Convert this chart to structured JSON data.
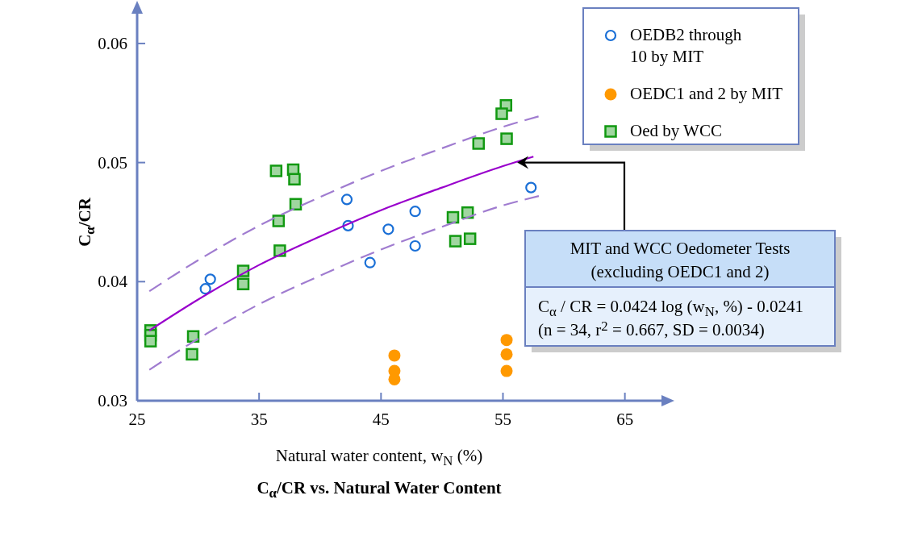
{
  "chart_data": {
    "type": "scatter",
    "title": "C$_{α}$/CR vs. Natural Water Content",
    "xlabel": "Natural water content, w$_{N}$ (%)",
    "ylabel": "C$_{α}$/CR",
    "xlim": [
      25,
      68
    ],
    "ylim": [
      0.03,
      0.0625
    ],
    "xticks": [
      25,
      35,
      45,
      55,
      65
    ],
    "yticks": [
      0.03,
      0.04,
      0.05,
      0.06
    ],
    "grid": false,
    "legend": "top right",
    "series": [
      {
        "name": "OEDB2 through 10 by MIT",
        "marker": "circle",
        "color": "#1a6fd6",
        "x": [
          30.6,
          31.0,
          42.2,
          42.3,
          44.1,
          45.6,
          47.8,
          47.8,
          57.3
        ],
        "values": [
          0.0394,
          0.0402,
          0.0469,
          0.0447,
          0.0416,
          0.0444,
          0.0459,
          0.043,
          0.0479
        ]
      },
      {
        "name": "OEDC1 and 2 by MIT",
        "marker": "circle",
        "color": "#ff9900",
        "x": [
          46.1,
          46.1,
          46.1,
          55.3,
          55.3,
          55.3
        ],
        "values": [
          0.0338,
          0.0325,
          0.0318,
          0.0351,
          0.0339,
          0.0325
        ]
      },
      {
        "name": "Oed by WCC",
        "marker": "square",
        "color": "#119911",
        "x": [
          26.1,
          26.1,
          26.1,
          29.6,
          29.5,
          33.7,
          33.7,
          36.4,
          37.8,
          37.9,
          38.0,
          36.6,
          36.7,
          55.25,
          54.9,
          53.0,
          55.3,
          50.9,
          52.1,
          51.1,
          52.3
        ],
        "values": [
          0.0359,
          0.0355,
          0.035,
          0.0354,
          0.0339,
          0.0409,
          0.0398,
          0.0493,
          0.0494,
          0.0486,
          0.0465,
          0.0451,
          0.0426,
          0.0548,
          0.0541,
          0.0516,
          0.052,
          0.0454,
          0.0458,
          0.0434,
          0.0436
        ]
      },
      {
        "type": "line",
        "line_style": "solid",
        "color": "#9900cc",
        "x": [
          26,
          30,
          35,
          40,
          45,
          50,
          55,
          57.5
        ],
        "values": [
          0.0359,
          0.0385,
          0.0414,
          0.0438,
          0.046,
          0.0479,
          0.0497,
          0.0505
        ]
      },
      {
        "type": "line",
        "line_style": "dashed",
        "color": "#a07cd0",
        "x": [
          26,
          30,
          35,
          40,
          45,
          50,
          55,
          58
        ],
        "values": [
          0.0392,
          0.0418,
          0.0447,
          0.0471,
          0.0493,
          0.0512,
          0.053,
          0.0539
        ]
      },
      {
        "type": "line",
        "line_style": "dashed",
        "color": "#a07cd0",
        "x": [
          26,
          30,
          35,
          40,
          45,
          50,
          55,
          58
        ],
        "values": [
          0.0326,
          0.0352,
          0.0381,
          0.0405,
          0.0427,
          0.0446,
          0.0464,
          0.0472
        ]
      }
    ],
    "annotations": [
      {
        "text": "MIT and WCC Oedometer Tests\n(excluding OEDC1 and 2)",
        "x": 56.3,
        "y": 0.05
      },
      "C$_{α}$ / CR = 0.0424 log (w$_{N}$, %) - 0.0241\n(n = 34, r$^{2}$ = 0.667, SD = 0.0034)"
    ]
  }
}
